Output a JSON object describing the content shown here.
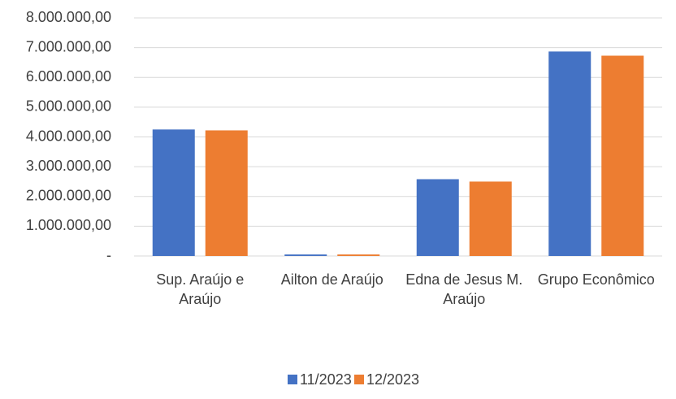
{
  "chart_data": {
    "type": "bar",
    "categories": [
      "Sup. Araújo e Araújo",
      "Ailton de Araújo",
      "Edna de Jesus M. Araújo",
      "Grupo Econômico"
    ],
    "series": [
      {
        "name": "11/2023",
        "color": "#4472c4",
        "values": [
          4250000,
          50000,
          2580000,
          6870000
        ]
      },
      {
        "name": "12/2023",
        "color": "#ed7d31",
        "values": [
          4220000,
          50000,
          2500000,
          6730000
        ]
      }
    ],
    "ylim": [
      0,
      8000000
    ],
    "yticks": [
      {
        "value": 0,
        "label": "-"
      },
      {
        "value": 1000000,
        "label": "1.000.000,00"
      },
      {
        "value": 2000000,
        "label": "2.000.000,00"
      },
      {
        "value": 3000000,
        "label": "3.000.000,00"
      },
      {
        "value": 4000000,
        "label": "4.000.000,00"
      },
      {
        "value": 5000000,
        "label": "5.000.000,00"
      },
      {
        "value": 6000000,
        "label": "6.000.000,00"
      },
      {
        "value": 7000000,
        "label": "7.000.000,00"
      },
      {
        "value": 8000000,
        "label": "8.000.000,00"
      }
    ],
    "grid": true,
    "legend": "bottom"
  }
}
